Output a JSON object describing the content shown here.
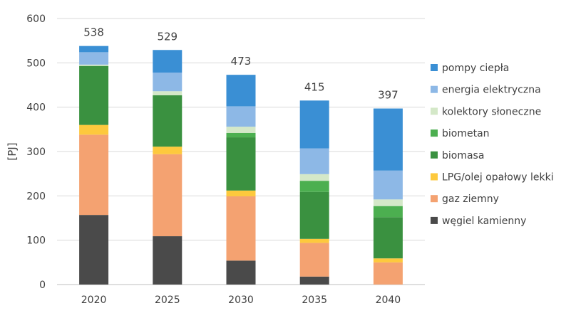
{
  "chart_data": {
    "type": "bar",
    "stacked": true,
    "ylabel": "[PJ]",
    "ylim": [
      0,
      600
    ],
    "yticks": [
      0,
      100,
      200,
      300,
      400,
      500,
      600
    ],
    "grid": true,
    "legend_position": "right",
    "categories": [
      "2020",
      "2025",
      "2030",
      "2035",
      "2040"
    ],
    "totals": [
      "538",
      "529",
      "473",
      "415",
      "397"
    ],
    "series": [
      {
        "name": "węgiel kamienny",
        "color": "#4a4a4a",
        "values": [
          157,
          109,
          54,
          18,
          0
        ]
      },
      {
        "name": "gaz ziemny",
        "color": "#f4a271",
        "values": [
          181,
          185,
          145,
          76,
          50
        ]
      },
      {
        "name": "LPG/olej opałowy lekki",
        "color": "#fdc93d",
        "values": [
          22,
          17,
          13,
          9,
          9
        ]
      },
      {
        "name": "biomasa",
        "color": "#3a9140",
        "values": [
          133,
          116,
          120,
          106,
          93
        ]
      },
      {
        "name": "biometan",
        "color": "#4caf50",
        "values": [
          0,
          0,
          10,
          25,
          25
        ]
      },
      {
        "name": "kolektory słoneczne",
        "color": "#d4e8c8",
        "values": [
          3,
          9,
          14,
          15,
          15
        ]
      },
      {
        "name": "energia elektryczna",
        "color": "#8db8e6",
        "values": [
          28,
          42,
          46,
          58,
          65
        ]
      },
      {
        "name": "pompy ciepła",
        "color": "#3a8fd4",
        "values": [
          14,
          51,
          71,
          108,
          140
        ]
      }
    ],
    "legend_order": [
      "pompy ciepła",
      "energia elektryczna",
      "kolektory słoneczne",
      "biometan",
      "biomasa",
      "LPG/olej opałowy lekki",
      "gaz ziemny",
      "węgiel kamienny"
    ]
  }
}
